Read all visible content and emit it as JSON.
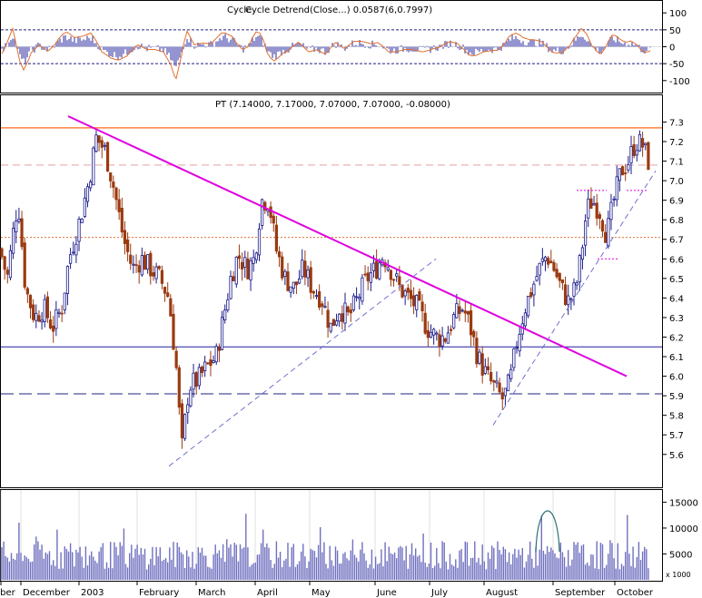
{
  "chart_data": [
    {
      "type": "line",
      "panel": "oscillator",
      "title": "Cycle",
      "title_overlap_text": "Cycle Detrend(Close...) 0.0587(6,0.7997)",
      "ylim": [
        -130,
        130
      ],
      "yticks": [
        "100",
        "50",
        "0",
        "-50",
        "-100"
      ],
      "reference_lines": [
        50,
        -50
      ],
      "series": [
        {
          "kind": "histogram",
          "color": "#7070c0"
        },
        {
          "kind": "line",
          "color": "#e07030"
        }
      ]
    },
    {
      "type": "candlestick",
      "panel": "price",
      "title": "PT (7.14000, 7.17000, 7.07000, 7.07000, -0.08000)",
      "ylim": [
        5.52,
        7.33
      ],
      "yticks": [
        "7.3",
        "7.2",
        "7.1",
        "7.0",
        "6.9",
        "6.8",
        "6.7",
        "6.6",
        "6.5",
        "6.4",
        "6.3",
        "6.2",
        "6.1",
        "6.0",
        "5.9",
        "5.8",
        "5.7",
        "5.6"
      ],
      "xticks": [
        "ober",
        "December",
        "2003",
        "February",
        "March",
        "April",
        "May",
        "June",
        "July",
        "August",
        "September",
        "October"
      ],
      "last_bar": {
        "open": 7.14,
        "high": 7.17,
        "low": 7.07,
        "close": 7.07,
        "change": -0.08
      },
      "keypoints": [
        {
          "x": 0,
          "y": 6.65
        },
        {
          "x": 8,
          "y": 6.5
        },
        {
          "x": 15,
          "y": 6.75
        },
        {
          "x": 20,
          "y": 6.9
        },
        {
          "x": 28,
          "y": 6.45
        },
        {
          "x": 38,
          "y": 6.3
        },
        {
          "x": 48,
          "y": 6.35
        },
        {
          "x": 58,
          "y": 6.25
        },
        {
          "x": 68,
          "y": 6.35
        },
        {
          "x": 76,
          "y": 6.6
        },
        {
          "x": 88,
          "y": 6.8
        },
        {
          "x": 98,
          "y": 7.0
        },
        {
          "x": 106,
          "y": 7.22
        },
        {
          "x": 116,
          "y": 7.15
        },
        {
          "x": 126,
          "y": 6.95
        },
        {
          "x": 136,
          "y": 6.7
        },
        {
          "x": 146,
          "y": 6.55
        },
        {
          "x": 156,
          "y": 6.6
        },
        {
          "x": 166,
          "y": 6.55
        },
        {
          "x": 176,
          "y": 6.5
        },
        {
          "x": 186,
          "y": 6.4
        },
        {
          "x": 194,
          "y": 6.05
        },
        {
          "x": 200,
          "y": 5.62
        },
        {
          "x": 208,
          "y": 5.95
        },
        {
          "x": 218,
          "y": 5.98
        },
        {
          "x": 228,
          "y": 6.05
        },
        {
          "x": 238,
          "y": 6.1
        },
        {
          "x": 246,
          "y": 6.3
        },
        {
          "x": 254,
          "y": 6.5
        },
        {
          "x": 262,
          "y": 6.62
        },
        {
          "x": 272,
          "y": 6.55
        },
        {
          "x": 280,
          "y": 6.6
        },
        {
          "x": 288,
          "y": 6.9
        },
        {
          "x": 296,
          "y": 6.9
        },
        {
          "x": 304,
          "y": 6.65
        },
        {
          "x": 314,
          "y": 6.5
        },
        {
          "x": 324,
          "y": 6.45
        },
        {
          "x": 334,
          "y": 6.55
        },
        {
          "x": 344,
          "y": 6.45
        },
        {
          "x": 354,
          "y": 6.4
        },
        {
          "x": 364,
          "y": 6.25
        },
        {
          "x": 374,
          "y": 6.35
        },
        {
          "x": 384,
          "y": 6.3
        },
        {
          "x": 394,
          "y": 6.4
        },
        {
          "x": 404,
          "y": 6.5
        },
        {
          "x": 414,
          "y": 6.55
        },
        {
          "x": 422,
          "y": 6.62
        },
        {
          "x": 430,
          "y": 6.55
        },
        {
          "x": 440,
          "y": 6.45
        },
        {
          "x": 450,
          "y": 6.4
        },
        {
          "x": 460,
          "y": 6.35
        },
        {
          "x": 470,
          "y": 6.25
        },
        {
          "x": 480,
          "y": 6.2
        },
        {
          "x": 490,
          "y": 6.2
        },
        {
          "x": 500,
          "y": 6.3
        },
        {
          "x": 510,
          "y": 6.35
        },
        {
          "x": 518,
          "y": 6.25
        },
        {
          "x": 526,
          "y": 6.1
        },
        {
          "x": 536,
          "y": 6.0
        },
        {
          "x": 546,
          "y": 5.93
        },
        {
          "x": 554,
          "y": 5.88
        },
        {
          "x": 562,
          "y": 5.98
        },
        {
          "x": 570,
          "y": 6.2
        },
        {
          "x": 578,
          "y": 6.35
        },
        {
          "x": 586,
          "y": 6.45
        },
        {
          "x": 594,
          "y": 6.55
        },
        {
          "x": 602,
          "y": 6.62
        },
        {
          "x": 610,
          "y": 6.55
        },
        {
          "x": 618,
          "y": 6.45
        },
        {
          "x": 626,
          "y": 6.38
        },
        {
          "x": 634,
          "y": 6.45
        },
        {
          "x": 640,
          "y": 6.62
        },
        {
          "x": 646,
          "y": 6.85
        },
        {
          "x": 652,
          "y": 6.9
        },
        {
          "x": 660,
          "y": 6.85
        },
        {
          "x": 668,
          "y": 6.72
        },
        {
          "x": 676,
          "y": 6.9
        },
        {
          "x": 684,
          "y": 7.05
        },
        {
          "x": 692,
          "y": 7.1
        },
        {
          "x": 700,
          "y": 7.2
        },
        {
          "x": 708,
          "y": 7.18
        },
        {
          "x": 716,
          "y": 7.07
        }
      ],
      "horizontal_lines": [
        {
          "y": 7.27,
          "color": "#ff8040",
          "style": "solid"
        },
        {
          "y": 7.08,
          "color": "#e8a0a0",
          "style": "dash"
        },
        {
          "y": 6.71,
          "color": "#e07030",
          "style": "dot"
        },
        {
          "y": 6.15,
          "color": "#2020a0",
          "style": "solid"
        },
        {
          "y": 5.91,
          "color": "#202080",
          "style": "longdash"
        }
      ],
      "trend_lines": [
        {
          "x1": 75,
          "y1": 7.33,
          "x2": 690,
          "y2": 6.0,
          "color": "#e000e0",
          "style": "solid"
        },
        {
          "x1": 186,
          "y1": 5.54,
          "x2": 480,
          "y2": 6.6,
          "color": "#7070d0",
          "style": "dash"
        },
        {
          "x1": 543,
          "y1": 5.75,
          "x2": 722,
          "y2": 7.05,
          "color": "#7070d0",
          "style": "dash"
        }
      ]
    },
    {
      "type": "bar",
      "panel": "volume",
      "ylim": [
        0,
        17000
      ],
      "yticks": [
        "15000",
        "10000",
        "5000"
      ],
      "unit_label": "x 1000",
      "color": "#7070c0"
    }
  ]
}
